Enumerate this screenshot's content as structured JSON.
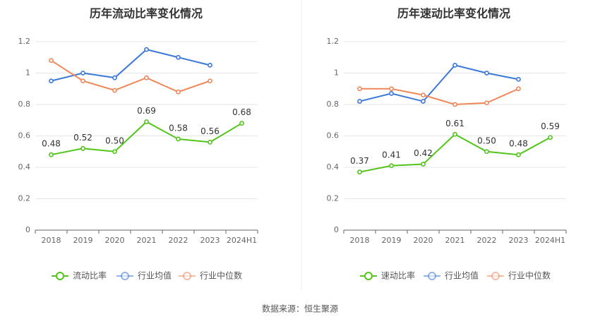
{
  "colors": {
    "primary": "#52c41a",
    "industry_avg": "#3c78d8",
    "industry_median": "#f0885a",
    "grid": "#e6e6e6",
    "axis": "#666666",
    "divider": "#eeeeee"
  },
  "source": "数据来源：恒生聚源",
  "chart_data": [
    {
      "type": "line",
      "title": "历年流动比率变化情况",
      "categories": [
        "2018",
        "2019",
        "2020",
        "2021",
        "2022",
        "2023",
        "2024H1"
      ],
      "y_ticks": [
        "0",
        "0.2",
        "0.4",
        "0.6",
        "0.8",
        "1",
        "1.2"
      ],
      "ylim": [
        0,
        1.2
      ],
      "grid": true,
      "legend_position": "bottom",
      "series": [
        {
          "name": "流动比率",
          "color": "#52c41a",
          "values": [
            0.48,
            0.52,
            0.5,
            0.69,
            0.58,
            0.56,
            0.68
          ],
          "labels": [
            "0.48",
            "0.52",
            "0.50",
            "0.69",
            "0.58",
            "0.56",
            "0.68"
          ]
        },
        {
          "name": "行业均值",
          "color": "#3c78d8",
          "values": [
            0.95,
            1.0,
            0.97,
            1.15,
            1.1,
            1.05,
            null
          ]
        },
        {
          "name": "行业中位数",
          "color": "#f0885a",
          "values": [
            1.08,
            0.95,
            0.89,
            0.97,
            0.88,
            0.95,
            null
          ]
        }
      ]
    },
    {
      "type": "line",
      "title": "历年速动比率变化情况",
      "categories": [
        "2018",
        "2019",
        "2020",
        "2021",
        "2022",
        "2023",
        "2024H1"
      ],
      "y_ticks": [
        "0",
        "0.2",
        "0.4",
        "0.6",
        "0.8",
        "1",
        "1.2"
      ],
      "ylim": [
        0,
        1.2
      ],
      "grid": true,
      "legend_position": "bottom",
      "series": [
        {
          "name": "速动比率",
          "color": "#52c41a",
          "values": [
            0.37,
            0.41,
            0.42,
            0.61,
            0.5,
            0.48,
            0.59
          ],
          "labels": [
            "0.37",
            "0.41",
            "0.42",
            "0.61",
            "0.50",
            "0.48",
            "0.59"
          ]
        },
        {
          "name": "行业均值",
          "color": "#3c78d8",
          "values": [
            0.82,
            0.87,
            0.82,
            1.05,
            1.0,
            0.96,
            null
          ]
        },
        {
          "name": "行业中位数",
          "color": "#f0885a",
          "values": [
            0.9,
            0.9,
            0.86,
            0.8,
            0.81,
            0.9,
            null
          ]
        }
      ]
    }
  ]
}
